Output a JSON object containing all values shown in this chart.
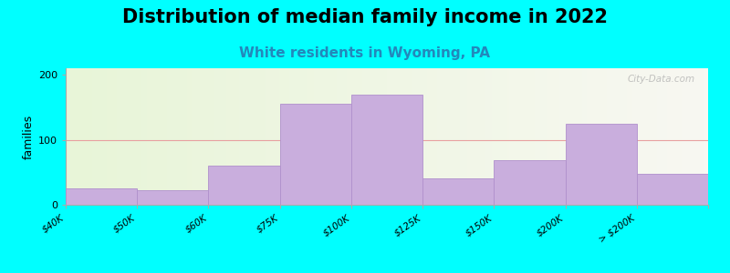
{
  "title": "Distribution of median family income in 2022",
  "subtitle": "White residents in Wyoming, PA",
  "ylabel": "families",
  "background_outer": "#00FFFF",
  "background_inner_left": "#e8f5d8",
  "background_inner_right": "#f8f8f2",
  "bar_color": "#c9aedd",
  "bar_edge_color": "#b090cc",
  "values": [
    25,
    22,
    60,
    155,
    170,
    40,
    68,
    125,
    48
  ],
  "x_labels": [
    "$40K",
    "$50K",
    "$60K",
    "$75K",
    "$100K",
    "$125K",
    "$150K",
    "$200K",
    "> $200K"
  ],
  "yticks": [
    0,
    100,
    200
  ],
  "ylim": [
    0,
    210
  ],
  "grid_color": "#e8a0a0",
  "title_fontsize": 15,
  "subtitle_fontsize": 11,
  "subtitle_color": "#2288bb",
  "watermark": "City-Data.com"
}
